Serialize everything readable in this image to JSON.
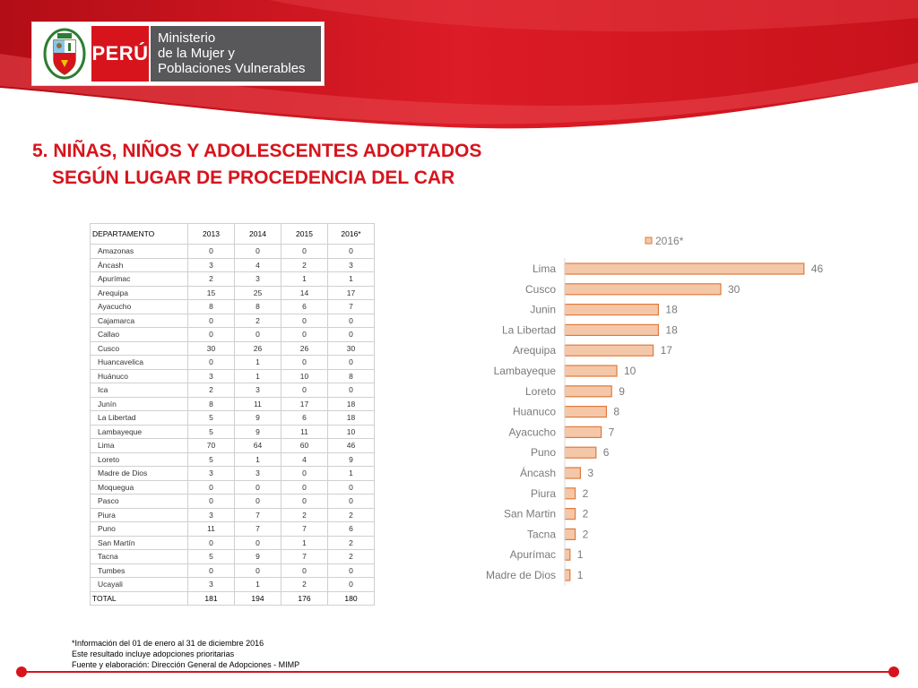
{
  "header": {
    "peru_label": "PERÚ",
    "ministry_lines": [
      "Ministerio",
      "de la Mujer y",
      "Poblaciones Vulnerables"
    ],
    "brand_red": "#d7141c",
    "brand_gray": "#58585a"
  },
  "title": {
    "line1": "5. NIÑAS, NIÑOS Y ADOLESCENTES ADOPTADOS",
    "line2": "SEGÚN LUGAR DE PROCEDENCIA DEL CAR"
  },
  "table": {
    "headers": [
      "DEPARTAMENTO",
      "2013",
      "2014",
      "2015",
      "2016*"
    ],
    "rows": [
      [
        "Amazonas",
        "0",
        "0",
        "0",
        "0"
      ],
      [
        "Áncash",
        "3",
        "4",
        "2",
        "3"
      ],
      [
        "Apurímac",
        "2",
        "3",
        "1",
        "1"
      ],
      [
        "Arequipa",
        "15",
        "25",
        "14",
        "17"
      ],
      [
        "Ayacucho",
        "8",
        "8",
        "6",
        "7"
      ],
      [
        "Cajamarca",
        "0",
        "2",
        "0",
        "0"
      ],
      [
        "Callao",
        "0",
        "0",
        "0",
        "0"
      ],
      [
        "Cusco",
        "30",
        "26",
        "26",
        "30"
      ],
      [
        "Huancavelica",
        "0",
        "1",
        "0",
        "0"
      ],
      [
        "Huánuco",
        "3",
        "1",
        "10",
        "8"
      ],
      [
        "Ica",
        "2",
        "3",
        "0",
        "0"
      ],
      [
        "Junín",
        "8",
        "11",
        "17",
        "18"
      ],
      [
        "La Libertad",
        "5",
        "9",
        "6",
        "18"
      ],
      [
        "Lambayeque",
        "5",
        "9",
        "11",
        "10"
      ],
      [
        "Lima",
        "70",
        "64",
        "60",
        "46"
      ],
      [
        "Loreto",
        "5",
        "1",
        "4",
        "9"
      ],
      [
        "Madre de Dios",
        "3",
        "3",
        "0",
        "1"
      ],
      [
        "Moquegua",
        "0",
        "0",
        "0",
        "0"
      ],
      [
        "Pasco",
        "0",
        "0",
        "0",
        "0"
      ],
      [
        "Piura",
        "3",
        "7",
        "2",
        "2"
      ],
      [
        "Puno",
        "11",
        "7",
        "7",
        "6"
      ],
      [
        "San Martín",
        "0",
        "0",
        "1",
        "2"
      ],
      [
        "Tacna",
        "5",
        "9",
        "7",
        "2"
      ],
      [
        "Tumbes",
        "0",
        "0",
        "0",
        "0"
      ],
      [
        "Ucayali",
        "3",
        "1",
        "2",
        "0"
      ]
    ],
    "total": [
      "TOTAL",
      "181",
      "194",
      "176",
      "180"
    ]
  },
  "chart_data": {
    "type": "bar",
    "orientation": "horizontal",
    "title": "",
    "xlabel": "",
    "ylabel": "",
    "legend_position": "top",
    "grid": false,
    "categories": [
      "Lima",
      "Cusco",
      "Junin",
      "La Libertad",
      "Arequipa",
      "Lambayeque",
      "Loreto",
      "Huanuco",
      "Ayacucho",
      "Puno",
      "Áncash",
      "Piura",
      "San Martin",
      "Tacna",
      "Apurímac",
      "Madre de Dios"
    ],
    "series": [
      {
        "name": "2016*",
        "values": [
          46,
          30,
          18,
          18,
          17,
          10,
          9,
          8,
          7,
          6,
          3,
          2,
          2,
          2,
          1,
          1
        ],
        "color": "#f5c7a9",
        "edge_color": "#e07a3a"
      }
    ],
    "xlim": [
      0,
      50
    ]
  },
  "footnote": {
    "lines": [
      "*Información del 01 de enero al 31 de diciembre 2016",
      "Este resultado incluye adopciones prioritarias",
      "Fuente y elaboración: Dirección General de Adopciones - MIMP"
    ]
  }
}
